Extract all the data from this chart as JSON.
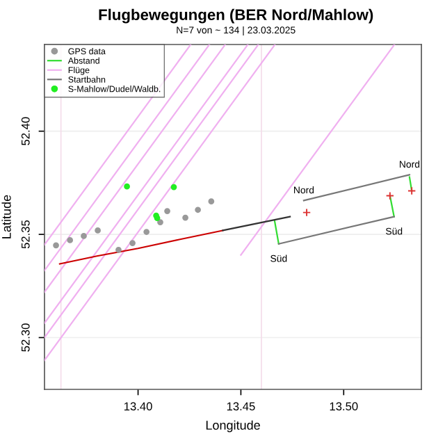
{
  "chart_data": {
    "type": "scatter",
    "title": "Flugbewegungen (BER Nord/Mahlow)",
    "subtitle": "N=7 von ~ 134 | 23.03.2025",
    "xlabel": "Longitude",
    "ylabel": "Latitude",
    "xlim": [
      13.3545,
      13.5378
    ],
    "ylim": [
      52.2749,
      52.442
    ],
    "xticks": [
      {
        "value": 13.4,
        "label": "13.40"
      },
      {
        "value": 13.45,
        "label": "13.45"
      },
      {
        "value": 13.5,
        "label": "13.50"
      }
    ],
    "yticks": [
      {
        "value": 52.3,
        "label": "52.30"
      },
      {
        "value": 52.35,
        "label": "52.35"
      },
      {
        "value": 52.4,
        "label": "52.40"
      }
    ],
    "grid": "y",
    "legend": "top left",
    "ref_lines": [
      {
        "axis": "x",
        "value": 13.3625,
        "color": "#f4dcea"
      },
      {
        "axis": "x",
        "value": 13.46,
        "color": "#f4dcea"
      }
    ],
    "series": [
      {
        "name": "GPS data",
        "marker": "circle",
        "color": "#999999",
        "x": [
          13.3601,
          13.3669,
          13.3736,
          13.3804,
          13.3905,
          13.3973,
          13.4041,
          13.4108,
          13.4142,
          13.423,
          13.4291,
          13.4356
        ],
        "values": [
          52.3447,
          52.3472,
          52.3492,
          52.3519,
          52.3425,
          52.3458,
          52.3512,
          52.3559,
          52.3613,
          52.3581,
          52.3619,
          52.366
        ]
      },
      {
        "name": "Abstand",
        "type": "line",
        "color": "#33dd33",
        "x": [
          13.4684,
          13.4664,
          null,
          13.5225,
          13.5245,
          null,
          13.532,
          13.5331
        ],
        "values": [
          52.3454,
          52.3566,
          null,
          52.3687,
          52.3586,
          null,
          52.3778,
          52.3711
        ]
      },
      {
        "name": "Flüge",
        "type": "line",
        "color": "#f0b0f0",
        "x": [
          13.3545,
          13.4666
        ],
        "values": [
          52.289,
          52.442
        ]
      },
      {
        "type": "line",
        "color": "#f0b0f0",
        "x": [
          13.3545,
          13.4585
        ],
        "values": [
          52.3,
          52.442
        ]
      },
      {
        "type": "line",
        "color": "#f0b0f0",
        "x": [
          13.3545,
          13.4534
        ],
        "values": [
          52.307,
          52.442
        ]
      },
      {
        "type": "line",
        "color": "#f0b0f0",
        "x": [
          13.3545,
          13.4424
        ],
        "values": [
          52.322,
          52.442
        ]
      },
      {
        "type": "line",
        "color": "#f0b0f0",
        "x": [
          13.3545,
          13.4347
        ],
        "values": [
          52.3325,
          52.442
        ]
      },
      {
        "type": "line",
        "color": "#f0b0f0",
        "x": [
          13.3545,
          13.4256
        ],
        "values": [
          52.345,
          52.442
        ]
      },
      {
        "type": "line",
        "color": "#f0b0f0",
        "x": [
          13.45,
          13.5247
        ],
        "values": [
          52.34,
          52.442
        ]
      },
      {
        "name": "Startbahn",
        "type": "line",
        "color": "#777777",
        "x": [
          13.4806,
          13.532,
          null,
          13.4684,
          13.5245
        ],
        "values": [
          52.3664,
          52.3789,
          null,
          52.3454,
          52.3586
        ]
      },
      {
        "name": "S-Mahlow/Dudel/Waldb.",
        "marker": "circle",
        "color": "#22ee22",
        "x": [
          13.3946,
          13.4174,
          13.4093,
          13.4088
        ],
        "values": [
          52.3732,
          52.3729,
          52.3579,
          52.3591
        ]
      },
      {
        "type": "line",
        "color": "#cc0000",
        "x": [
          13.3619,
          13.38,
          13.4,
          13.42,
          13.4412
        ],
        "values": [
          52.3357,
          52.3395,
          52.3432,
          52.3475,
          52.3519
        ]
      },
      {
        "type": "line",
        "color": "#333333",
        "x": [
          13.4412,
          13.4739
        ],
        "values": [
          52.3519,
          52.3586
        ]
      },
      {
        "marker": "cross",
        "color": "#dd3333",
        "x": [
          13.482,
          13.5225,
          13.5331
        ],
        "values": [
          52.3606,
          52.3687,
          52.3711
        ]
      }
    ],
    "annotations": [
      {
        "text": "Nord",
        "x": 13.4806,
        "y": 52.3664
      },
      {
        "text": "Nord",
        "x": 13.532,
        "y": 52.3789
      },
      {
        "text": "Süd",
        "x": 13.4684,
        "y": 52.3454
      },
      {
        "text": "Süd",
        "x": 13.5245,
        "y": 52.3586
      }
    ]
  }
}
